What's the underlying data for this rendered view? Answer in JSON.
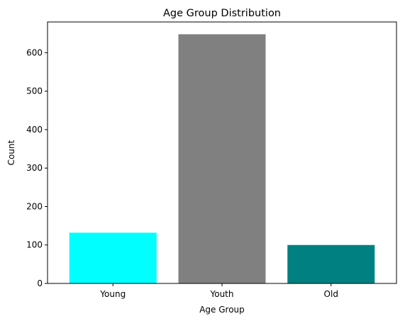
{
  "chart_data": {
    "type": "bar",
    "title": "Age Group Distribution",
    "xlabel": "Age Group",
    "ylabel": "Count",
    "categories": [
      "Young",
      "Youth",
      "Old"
    ],
    "values": [
      132,
      648,
      100
    ],
    "colors": [
      "#00ffff",
      "#808080",
      "#008080"
    ],
    "ylim": [
      0,
      680
    ],
    "yticks": [
      0,
      100,
      200,
      300,
      400,
      500,
      600
    ],
    "grid": false,
    "legend": "none"
  }
}
